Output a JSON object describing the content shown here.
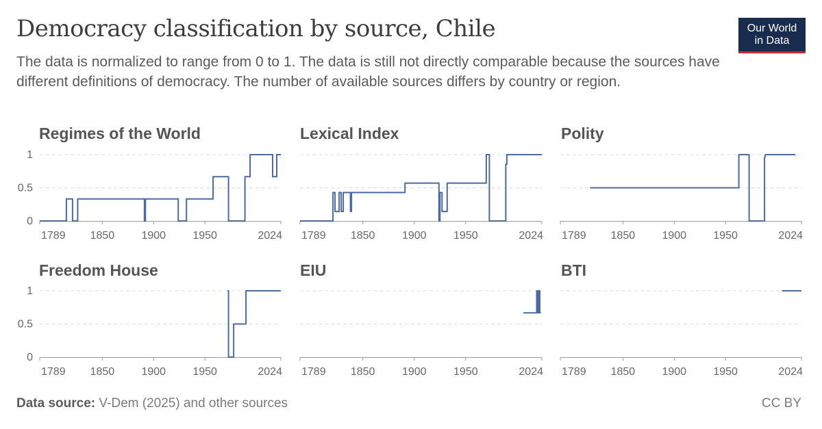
{
  "header": {
    "title": "Democracy classification by source, Chile",
    "subtitle": "The data is normalized to range from 0 to 1. The data is still not directly comparable because the sources have different definitions of democracy. The number of available sources differs by country or region.",
    "logo_line1": "Our World",
    "logo_line2": "in Data"
  },
  "footer": {
    "source_label": "Data source:",
    "source_text": "V-Dem (2025) and other sources",
    "license": "CC BY"
  },
  "colors": {
    "line": "#4c6a9c",
    "grid": "#dddddd",
    "axis": "#999999",
    "text": "#666666",
    "panel_title": "#555555"
  },
  "chart_data": [
    {
      "type": "line",
      "title": "Regimes of the World",
      "xticks": [
        "1789",
        "1850",
        "1900",
        "1950",
        "2024"
      ],
      "yticks": [
        "0",
        "0.5",
        "1"
      ],
      "xlim": [
        1789,
        2024
      ],
      "ylim": [
        0,
        1
      ],
      "points": [
        [
          1789,
          0
        ],
        [
          1815,
          0
        ],
        [
          1815,
          0.333
        ],
        [
          1821,
          0.333
        ],
        [
          1821,
          0
        ],
        [
          1826,
          0
        ],
        [
          1826,
          0.333
        ],
        [
          1891,
          0.333
        ],
        [
          1891,
          0
        ],
        [
          1892,
          0
        ],
        [
          1892,
          0.333
        ],
        [
          1924,
          0.333
        ],
        [
          1924,
          0
        ],
        [
          1932,
          0
        ],
        [
          1932,
          0.333
        ],
        [
          1958,
          0.333
        ],
        [
          1958,
          0.667
        ],
        [
          1972,
          0.667
        ],
        [
          1972,
          0.667
        ],
        [
          1973,
          0.667
        ],
        [
          1973,
          0
        ],
        [
          1989,
          0
        ],
        [
          1989,
          0.667
        ],
        [
          1994,
          0.667
        ],
        [
          1994,
          1
        ],
        [
          2016,
          1
        ],
        [
          2016,
          0.667
        ],
        [
          2020,
          0.667
        ],
        [
          2020,
          1
        ],
        [
          2024,
          1
        ]
      ]
    },
    {
      "type": "line",
      "title": "Lexical Index",
      "xticks": [
        "1789",
        "1850",
        "1900",
        "1950",
        "2024"
      ],
      "yticks": [
        "0",
        "0.5",
        "1"
      ],
      "xlim": [
        1789,
        2024
      ],
      "ylim": [
        0,
        1
      ],
      "points": [
        [
          1789,
          0
        ],
        [
          1821,
          0
        ],
        [
          1821,
          0.429
        ],
        [
          1823,
          0.429
        ],
        [
          1823,
          0.143
        ],
        [
          1827,
          0.143
        ],
        [
          1827,
          0.429
        ],
        [
          1829,
          0.429
        ],
        [
          1829,
          0.143
        ],
        [
          1831,
          0.143
        ],
        [
          1831,
          0.429
        ],
        [
          1838,
          0.429
        ],
        [
          1838,
          0.143
        ],
        [
          1839,
          0.143
        ],
        [
          1839,
          0.429
        ],
        [
          1891,
          0.429
        ],
        [
          1891,
          0.571
        ],
        [
          1924,
          0.571
        ],
        [
          1924,
          0
        ],
        [
          1925,
          0
        ],
        [
          1925,
          0.429
        ],
        [
          1927,
          0.429
        ],
        [
          1927,
          0.143
        ],
        [
          1932,
          0.143
        ],
        [
          1932,
          0.571
        ],
        [
          1970,
          0.571
        ],
        [
          1970,
          1
        ],
        [
          1973,
          1
        ],
        [
          1973,
          0
        ],
        [
          1989,
          0
        ],
        [
          1989,
          0.857
        ],
        [
          1990,
          0.857
        ],
        [
          1990,
          1
        ],
        [
          2024,
          1
        ]
      ]
    },
    {
      "type": "line",
      "title": "Polity",
      "xticks": [
        "1789",
        "1850",
        "1900",
        "1950",
        "2024"
      ],
      "yticks": [
        "0",
        "0.5",
        "1"
      ],
      "xlim": [
        1789,
        2024
      ],
      "ylim": [
        0,
        1
      ],
      "points": [
        [
          1818,
          0.5
        ],
        [
          1963,
          0.5
        ],
        [
          1963,
          1
        ],
        [
          1973,
          1
        ],
        [
          1973,
          0
        ],
        [
          1988,
          0
        ],
        [
          1988,
          0.95
        ],
        [
          1989,
          1
        ],
        [
          2018,
          1
        ]
      ]
    },
    {
      "type": "line",
      "title": "Freedom House",
      "xticks": [
        "1789",
        "1850",
        "1900",
        "1950",
        "2024"
      ],
      "yticks": [
        "0",
        "0.5",
        "1"
      ],
      "xlim": [
        1789,
        2024
      ],
      "ylim": [
        0,
        1
      ],
      "points": [
        [
          1972,
          1
        ],
        [
          1973,
          1
        ],
        [
          1973,
          0
        ],
        [
          1976,
          0
        ],
        [
          1976,
          0
        ],
        [
          1978,
          0
        ],
        [
          1978,
          0.5
        ],
        [
          1988,
          0.5
        ],
        [
          1988,
          0.5
        ],
        [
          1990,
          0.5
        ],
        [
          1990,
          1
        ],
        [
          2024,
          1
        ]
      ]
    },
    {
      "type": "line",
      "title": "EIU",
      "xticks": [
        "1789",
        "1850",
        "1900",
        "1950",
        "2024"
      ],
      "yticks": [
        "0",
        "0.5",
        "1"
      ],
      "xlim": [
        1789,
        2024
      ],
      "ylim": [
        0,
        1
      ],
      "points": [
        [
          2006,
          0.667
        ],
        [
          2019,
          0.667
        ],
        [
          2019,
          1
        ],
        [
          2020,
          1
        ],
        [
          2020,
          0.667
        ],
        [
          2021,
          0.667
        ],
        [
          2021,
          1
        ],
        [
          2022,
          1
        ],
        [
          2022,
          0.667
        ],
        [
          2023,
          0.667
        ]
      ]
    },
    {
      "type": "line",
      "title": "BTI",
      "xticks": [
        "1789",
        "1850",
        "1900",
        "1950",
        "2024"
      ],
      "yticks": [
        "0",
        "0.5",
        "1"
      ],
      "xlim": [
        1789,
        2024
      ],
      "ylim": [
        0,
        1
      ],
      "points": [
        [
          2005,
          1
        ],
        [
          2024,
          1
        ]
      ]
    }
  ]
}
